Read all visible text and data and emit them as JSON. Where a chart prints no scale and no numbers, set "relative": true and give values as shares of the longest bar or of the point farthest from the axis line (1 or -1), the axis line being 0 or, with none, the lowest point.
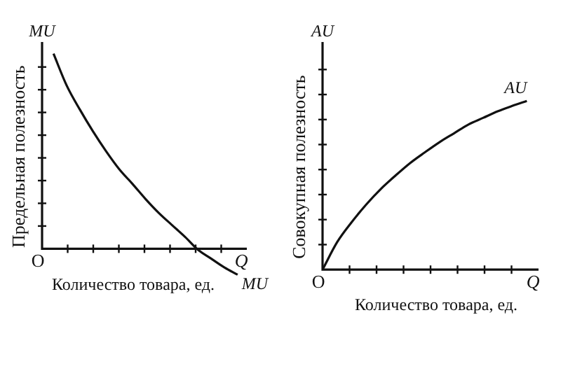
{
  "chart_data": [
    {
      "type": "line",
      "relative": true,
      "xlabel": "Количество товара, ед.",
      "ylabel": "Предельная полезность",
      "annotations": [
        "MU",
        "O",
        "Q"
      ],
      "categories": [
        null,
        null,
        null,
        null,
        null,
        null,
        null,
        null,
        null,
        null,
        null,
        null,
        null,
        null,
        null
      ],
      "series": [
        {
          "name": "MU",
          "color": "#111111",
          "values": [
            1,
            0.837,
            0.714,
            0.602,
            0.5,
            0.408,
            0.333,
            0.255,
            0.184,
            0.122,
            0.061,
            -0.006,
            -0.051,
            -0.096,
            -0.133
          ]
        }
      ]
    },
    {
      "type": "line",
      "relative": true,
      "xlabel": "Количество товара, ед.",
      "ylabel": "Совокупная полезность",
      "annotations": [
        "AU",
        "O",
        "Q"
      ],
      "categories": [
        null,
        null,
        null,
        null,
        null,
        null,
        null,
        null,
        null,
        null,
        null,
        null,
        null,
        null,
        null
      ],
      "series": [
        {
          "name": "AU",
          "color": "#111111",
          "values": [
            0,
            0.163,
            0.282,
            0.387,
            0.479,
            0.558,
            0.632,
            0.695,
            0.755,
            0.808,
            0.861,
            0.9,
            0.939,
            0.971,
            1
          ]
        }
      ]
    }
  ]
}
